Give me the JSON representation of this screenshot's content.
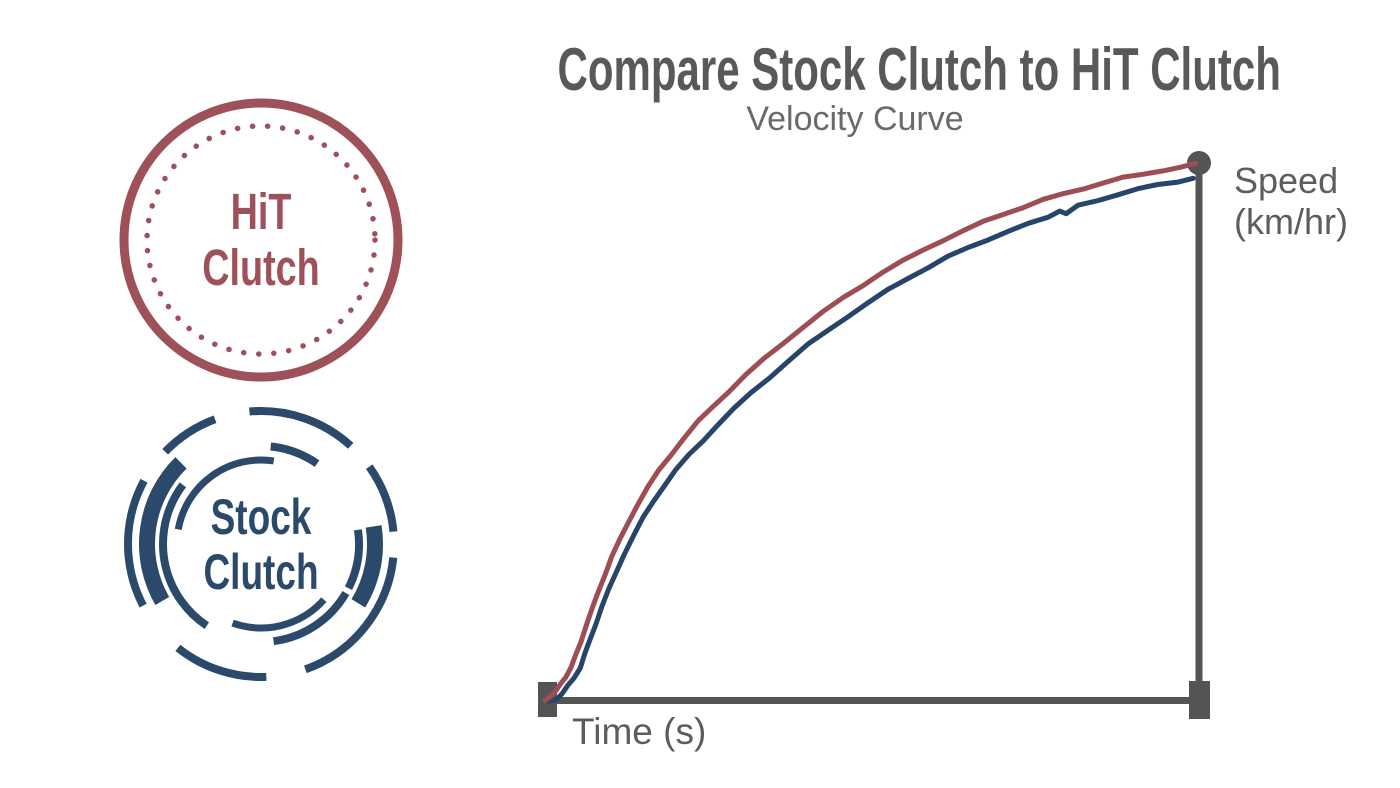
{
  "header": {
    "title": "Compare Stock Clutch to HiT Clutch",
    "subtitle": "Velocity Curve"
  },
  "colors": {
    "title_gray": "#595959",
    "subtitle_gray": "#6a6a6a",
    "axis_gray": "#545454",
    "label_gray": "#5d5d5d",
    "accent_red": "#9e5158",
    "accent_navy": "#2b4a6b"
  },
  "badges": [
    {
      "id": "hit",
      "label_line1": "HiT",
      "label_line2": "Clutch",
      "color": "#9e5158",
      "ring_style": "solid outer ring with inner dotted ring"
    },
    {
      "id": "stock",
      "label_line1": "Stock",
      "label_line2": "Clutch",
      "color": "#2b4a6b",
      "ring_style": "broken dashed concentric arcs"
    }
  ],
  "chart_data": {
    "type": "line",
    "title": "Velocity Curve",
    "xlabel": "Time (s)",
    "ylabel": "Speed (km/hr)",
    "axes": {
      "axis_color": "#545454",
      "grid": false,
      "tick_labels": "none (qualitative axes)",
      "x_range_normalized": [
        0,
        1
      ],
      "y_range_normalized": [
        0,
        1
      ],
      "y_axis_position": "right",
      "end_marker": "filled circle at top of speed axis"
    },
    "legend": "none (badges at left identify series)",
    "series": [
      {
        "name": "Stock Clutch",
        "color": "#27456a",
        "points": [
          [
            0.005,
            -0.002
          ],
          [
            0.017,
            0.002
          ],
          [
            0.026,
            0.011
          ],
          [
            0.035,
            0.026
          ],
          [
            0.044,
            0.041
          ],
          [
            0.054,
            0.061
          ],
          [
            0.061,
            0.086
          ],
          [
            0.069,
            0.112
          ],
          [
            0.078,
            0.143
          ],
          [
            0.087,
            0.175
          ],
          [
            0.098,
            0.207
          ],
          [
            0.109,
            0.238
          ],
          [
            0.121,
            0.272
          ],
          [
            0.135,
            0.305
          ],
          [
            0.15,
            0.339
          ],
          [
            0.165,
            0.369
          ],
          [
            0.182,
            0.399
          ],
          [
            0.2,
            0.428
          ],
          [
            0.22,
            0.456
          ],
          [
            0.242,
            0.484
          ],
          [
            0.265,
            0.514
          ],
          [
            0.289,
            0.542
          ],
          [
            0.315,
            0.572
          ],
          [
            0.343,
            0.601
          ],
          [
            0.372,
            0.631
          ],
          [
            0.402,
            0.661
          ],
          [
            0.433,
            0.689
          ],
          [
            0.463,
            0.715
          ],
          [
            0.494,
            0.739
          ],
          [
            0.524,
            0.763
          ],
          [
            0.555,
            0.786
          ],
          [
            0.586,
            0.806
          ],
          [
            0.616,
            0.825
          ],
          [
            0.647,
            0.842
          ],
          [
            0.677,
            0.858
          ],
          [
            0.708,
            0.873
          ],
          [
            0.739,
            0.886
          ],
          [
            0.769,
            0.899
          ],
          [
            0.787,
            0.912
          ],
          [
            0.797,
            0.905
          ],
          [
            0.815,
            0.92
          ],
          [
            0.846,
            0.931
          ],
          [
            0.876,
            0.942
          ],
          [
            0.907,
            0.951
          ],
          [
            0.937,
            0.959
          ],
          [
            0.968,
            0.966
          ],
          [
            0.991,
            0.972
          ]
        ]
      },
      {
        "name": "HiT Clutch",
        "color": "#9c4e54",
        "points": [
          [
            0.0,
            0.0
          ],
          [
            0.009,
            0.006
          ],
          [
            0.017,
            0.017
          ],
          [
            0.024,
            0.032
          ],
          [
            0.032,
            0.043
          ],
          [
            0.04,
            0.06
          ],
          [
            0.047,
            0.084
          ],
          [
            0.055,
            0.11
          ],
          [
            0.063,
            0.138
          ],
          [
            0.072,
            0.169
          ],
          [
            0.081,
            0.201
          ],
          [
            0.092,
            0.235
          ],
          [
            0.102,
            0.266
          ],
          [
            0.115,
            0.3
          ],
          [
            0.128,
            0.333
          ],
          [
            0.142,
            0.365
          ],
          [
            0.158,
            0.397
          ],
          [
            0.174,
            0.428
          ],
          [
            0.193,
            0.458
          ],
          [
            0.213,
            0.488
          ],
          [
            0.234,
            0.518
          ],
          [
            0.257,
            0.547
          ],
          [
            0.281,
            0.575
          ],
          [
            0.307,
            0.605
          ],
          [
            0.335,
            0.635
          ],
          [
            0.364,
            0.665
          ],
          [
            0.395,
            0.695
          ],
          [
            0.425,
            0.722
          ],
          [
            0.456,
            0.749
          ],
          [
            0.486,
            0.773
          ],
          [
            0.517,
            0.797
          ],
          [
            0.547,
            0.817
          ],
          [
            0.578,
            0.838
          ],
          [
            0.609,
            0.857
          ],
          [
            0.639,
            0.873
          ],
          [
            0.67,
            0.89
          ],
          [
            0.7,
            0.905
          ],
          [
            0.731,
            0.918
          ],
          [
            0.762,
            0.931
          ],
          [
            0.792,
            0.942
          ],
          [
            0.823,
            0.953
          ],
          [
            0.853,
            0.963
          ],
          [
            0.884,
            0.972
          ],
          [
            0.914,
            0.979
          ],
          [
            0.945,
            0.987
          ],
          [
            0.973,
            0.992
          ],
          [
            0.995,
            0.998
          ]
        ]
      }
    ]
  }
}
